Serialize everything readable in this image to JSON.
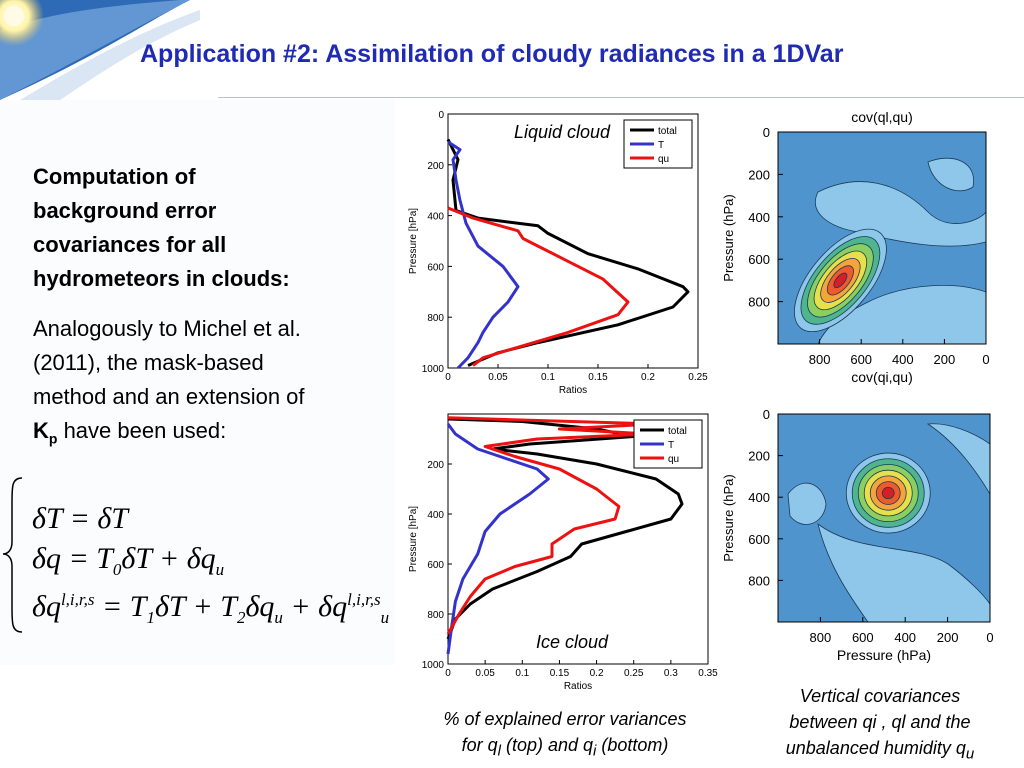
{
  "slide": {
    "title": "Application #2: Assimilation of cloudy radiances in a 1DVar"
  },
  "left": {
    "heading_lines": [
      "Computation of",
      "background error",
      "covariances for all",
      "hydrometeors in clouds:"
    ],
    "para_lines": [
      "Analogously to Michel et al.",
      "(2011), the mask-based",
      "method and an extension of"
    ],
    "kp_main": "K",
    "kp_sub": "p",
    "para_end": " have been used:"
  },
  "equations": {
    "eq1": "δT = δT",
    "eq2_a": "δq = T",
    "eq2_sub": "0",
    "eq2_b": "δT + δq",
    "eq2_sub2": "u",
    "eq3_a": "δq",
    "eq3_sup": "l,i,r,s",
    "eq3_b": " = T",
    "eq3_sub1": "1",
    "eq3_c": "δT + T",
    "eq3_sub2": "2",
    "eq3_d": "δq",
    "eq3_sub3": "u",
    "eq3_e": " + δq",
    "eq3_sup2": "l,i,r,s",
    "eq3_sub4": "u"
  },
  "captions": {
    "left_line1": "% of explained error variances",
    "left_line2_a": "for q",
    "left_line2_sub1": "l",
    "left_line2_b": " (top) and q",
    "left_line2_sub2": "i",
    "left_line2_c": " (bottom)",
    "right_line1": "Vertical covariances",
    "right_line2": "between qi , ql and the",
    "right_line3_a": "unbalanced humidity q",
    "right_line3_sub": "u"
  },
  "colors": {
    "title": "#1f2bb3",
    "total": "#000000",
    "T": "#3333cc",
    "qu": "#ee1111",
    "contour_bg": "#4f94cd",
    "contour_light": "#8ec7e9"
  },
  "chart_data": [
    {
      "type": "line",
      "annotation": "Liquid cloud",
      "xlabel": "Ratios",
      "ylabel": "Pressure [hPa]",
      "xlim": [
        0,
        0.25
      ],
      "ylim": [
        1000,
        0
      ],
      "xticks": [
        "0",
        "0.05",
        "0.1",
        "0.15",
        "0.2",
        "0.25"
      ],
      "yticks": [
        "0",
        "200",
        "400",
        "600",
        "800",
        "1000"
      ],
      "series": [
        {
          "name": "total",
          "color": "#000000",
          "points": [
            [
              0.0,
              100
            ],
            [
              0.01,
              180
            ],
            [
              0.005,
              260
            ],
            [
              0.008,
              380
            ],
            [
              0.03,
              410
            ],
            [
              0.09,
              440
            ],
            [
              0.1,
              470
            ],
            [
              0.14,
              550
            ],
            [
              0.19,
              610
            ],
            [
              0.235,
              680
            ],
            [
              0.24,
              700
            ],
            [
              0.225,
              760
            ],
            [
              0.17,
              830
            ],
            [
              0.09,
              900
            ],
            [
              0.05,
              940
            ],
            [
              0.02,
              990
            ]
          ]
        },
        {
          "name": "T",
          "color": "#3333cc",
          "points": [
            [
              0.0,
              110
            ],
            [
              0.012,
              140
            ],
            [
              0.005,
              180
            ],
            [
              0.008,
              260
            ],
            [
              0.012,
              340
            ],
            [
              0.018,
              430
            ],
            [
              0.03,
              520
            ],
            [
              0.055,
              600
            ],
            [
              0.07,
              680
            ],
            [
              0.06,
              740
            ],
            [
              0.045,
              800
            ],
            [
              0.035,
              860
            ],
            [
              0.03,
              900
            ],
            [
              0.02,
              960
            ],
            [
              0.01,
              1000
            ]
          ]
        },
        {
          "name": "qu",
          "color": "#ee1111",
          "points": [
            [
              0.0,
              370
            ],
            [
              0.025,
              410
            ],
            [
              0.07,
              460
            ],
            [
              0.075,
              490
            ],
            [
              0.09,
              520
            ],
            [
              0.12,
              580
            ],
            [
              0.155,
              650
            ],
            [
              0.18,
              740
            ],
            [
              0.17,
              790
            ],
            [
              0.12,
              860
            ],
            [
              0.06,
              930
            ],
            [
              0.035,
              960
            ],
            [
              0.025,
              990
            ]
          ]
        }
      ]
    },
    {
      "type": "line",
      "annotation": "Ice cloud",
      "xlabel": "Ratios",
      "ylabel": "Pressure [hPa]",
      "xlim": [
        0,
        0.35
      ],
      "ylim": [
        1000,
        0
      ],
      "xticks": [
        "0",
        "0.05",
        "0.1",
        "0.15",
        "0.2",
        "0.25",
        "0.3",
        "0.35"
      ],
      "yticks": [
        "200",
        "400",
        "600",
        "800",
        "1000"
      ],
      "series": [
        {
          "name": "total",
          "color": "#000000",
          "points": [
            [
              0.0,
              20
            ],
            [
              0.1,
              30
            ],
            [
              0.2,
              60
            ],
            [
              0.25,
              90
            ],
            [
              0.11,
              120
            ],
            [
              0.06,
              140
            ],
            [
              0.12,
              160
            ],
            [
              0.2,
              200
            ],
            [
              0.28,
              260
            ],
            [
              0.31,
              320
            ],
            [
              0.315,
              360
            ],
            [
              0.3,
              420
            ],
            [
              0.24,
              470
            ],
            [
              0.18,
              520
            ],
            [
              0.165,
              570
            ],
            [
              0.12,
              630
            ],
            [
              0.06,
              700
            ],
            [
              0.03,
              760
            ],
            [
              0.01,
              820
            ],
            [
              0.0,
              900
            ]
          ]
        },
        {
          "name": "T",
          "color": "#3333cc",
          "points": [
            [
              0.0,
              40
            ],
            [
              0.01,
              80
            ],
            [
              0.04,
              140
            ],
            [
              0.08,
              180
            ],
            [
              0.12,
              220
            ],
            [
              0.135,
              260
            ],
            [
              0.11,
              320
            ],
            [
              0.07,
              400
            ],
            [
              0.05,
              470
            ],
            [
              0.04,
              560
            ],
            [
              0.02,
              660
            ],
            [
              0.01,
              750
            ],
            [
              0.005,
              850
            ],
            [
              0.0,
              960
            ]
          ]
        },
        {
          "name": "qu",
          "color": "#ee1111",
          "points": [
            [
              0.0,
              15
            ],
            [
              0.28,
              40
            ],
            [
              0.15,
              60
            ],
            [
              0.27,
              80
            ],
            [
              0.12,
              100
            ],
            [
              0.05,
              130
            ],
            [
              0.09,
              170
            ],
            [
              0.15,
              220
            ],
            [
              0.2,
              300
            ],
            [
              0.23,
              370
            ],
            [
              0.225,
              420
            ],
            [
              0.17,
              460
            ],
            [
              0.14,
              520
            ],
            [
              0.14,
              570
            ],
            [
              0.09,
              610
            ],
            [
              0.05,
              660
            ],
            [
              0.03,
              730
            ],
            [
              0.015,
              800
            ],
            [
              0.0,
              880
            ]
          ]
        }
      ]
    },
    {
      "type": "heatmap",
      "title": "cov(ql,qu)",
      "xlabel": "cov(qi,qu)",
      "ylabel": "Pressure (hPa)",
      "xticks": [
        "800",
        "600",
        "400",
        "200",
        "0"
      ],
      "yticks": [
        "0",
        "200",
        "400",
        "600",
        "800"
      ],
      "xlim": [
        1000,
        0
      ],
      "ylim": [
        0,
        1000
      ],
      "peak_center": [
        700,
        700
      ],
      "levels": [
        "#8ec7e9",
        "#4fb58f",
        "#8bcf60",
        "#e8e04a",
        "#f5a33b",
        "#ee5a2c",
        "#d31f25"
      ]
    },
    {
      "type": "heatmap",
      "title": "",
      "xlabel": "Pressure (hPa)",
      "ylabel": "Pressure (hPa)",
      "xticks": [
        "800",
        "600",
        "400",
        "200",
        "0"
      ],
      "yticks": [
        "0",
        "200",
        "400",
        "600",
        "800"
      ],
      "xlim": [
        1000,
        0
      ],
      "ylim": [
        0,
        1000
      ],
      "peak_center": [
        480,
        380
      ],
      "levels": [
        "#8ec7e9",
        "#4fb58f",
        "#8bcf60",
        "#e8e04a",
        "#f5a33b",
        "#ee5a2c",
        "#d31f25"
      ]
    }
  ]
}
